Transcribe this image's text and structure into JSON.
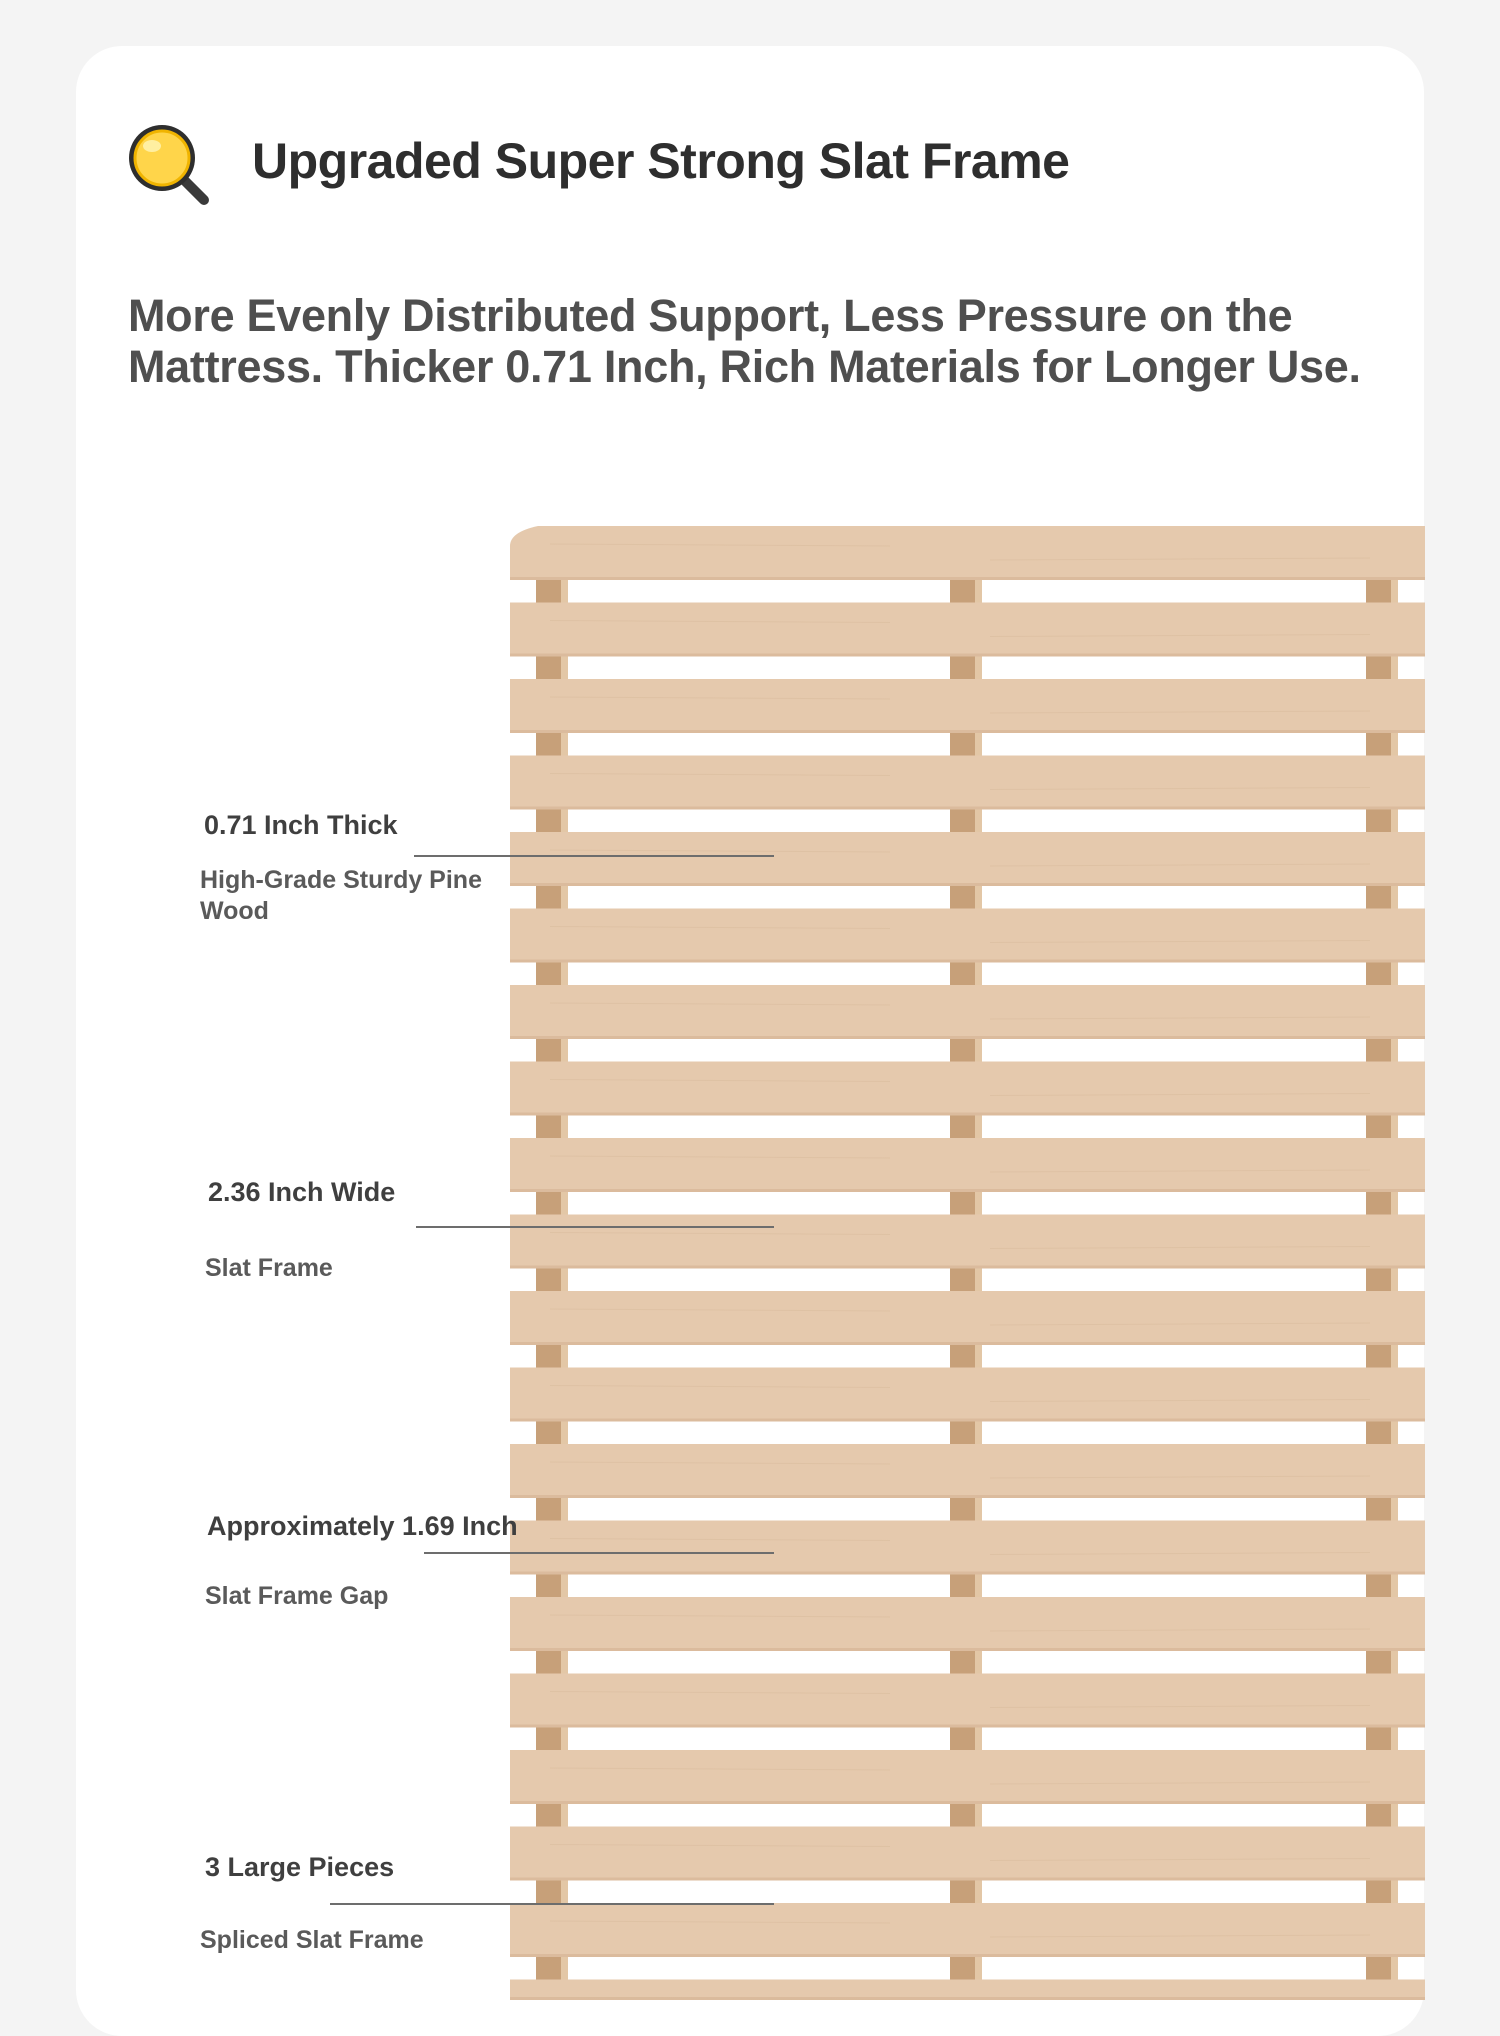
{
  "header": {
    "icon": "magnifier-icon",
    "title": "Upgraded Super Strong Slat Frame"
  },
  "subtitle": {
    "line1": "More Evenly Distributed Support, Less Pressure on the",
    "line2": "Mattress. Thicker 0.71 Inch, Rich Materials for Longer Use."
  },
  "annotations": [
    {
      "label": "0.71 Inch Thick",
      "description": "High-Grade Sturdy Pine Wood"
    },
    {
      "label": "2.36 Inch Wide",
      "description": "Slat Frame"
    },
    {
      "label": "Approximately 1.69 Inch",
      "description": "Slat Frame Gap"
    },
    {
      "label": "3 Large Pieces",
      "description": "Spliced Slat Frame"
    }
  ],
  "colors": {
    "slat": "#e5c9ad",
    "slat_edge": "#d4b393",
    "support_block": "#c7a079",
    "title_text": "#2e2e2e"
  }
}
